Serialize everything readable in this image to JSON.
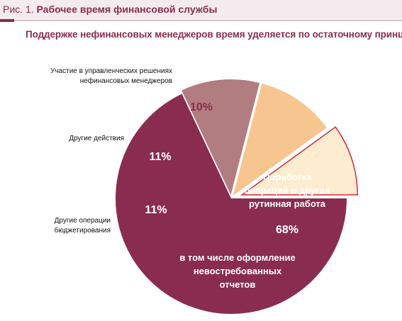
{
  "figure": {
    "label": "Рис. 1.",
    "title": "Рабочее время финансовой службы",
    "subtitle": "Поддержке нефинансовых менеджеров время уделяется по остаточному принципу"
  },
  "chart_data": {
    "type": "pie",
    "slices": [
      {
        "label": "Обработка операций и другая рутинная работа",
        "label_lines": [
          "Обработка",
          "операций и другая",
          "рутинная работа"
        ],
        "value": 68,
        "value_label": "68%",
        "note_lines": [
          "в том числе оформление",
          "невостребованных",
          "отчетов"
        ],
        "color": "#8a2c4f"
      },
      {
        "label": "Другие операции бюджетирования",
        "label_lines": [
          "Другие операции",
          "бюджетирования"
        ],
        "value": 11,
        "value_label": "11%",
        "color": "#b27d80"
      },
      {
        "label": "Другие действия",
        "label_lines": [
          "Другие действия"
        ],
        "value": 11,
        "value_label": "11%",
        "color": "#f7c58f"
      },
      {
        "label": "Участие в управленческих решениях нефинансовых менеджеров",
        "label_lines": [
          "Участие в управленческих  решениях",
          "нефинансовых менеджеров"
        ],
        "value": 10,
        "value_label": "10%",
        "color": "#fdeccf",
        "outline": "#d8283a",
        "exploded": true
      }
    ]
  }
}
